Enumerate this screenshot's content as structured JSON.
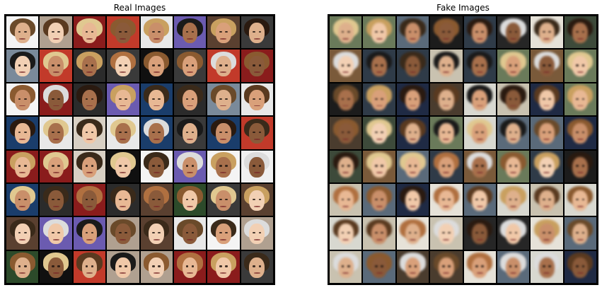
{
  "panels": {
    "real": {
      "title": "Real Images"
    },
    "fake": {
      "title": "Fake Images"
    }
  },
  "grid": {
    "rows": 8,
    "cols": 8
  },
  "colors": {
    "real_backgrounds": [
      "#2b2b2b",
      "#1a3d6b",
      "#f0f0f0",
      "#6a5a4a",
      "#101010",
      "#8a1c1c",
      "#d8d0c4",
      "#3a3a3a",
      "#c23a2a",
      "#b0a090",
      "#7a8a9a",
      "#5a4030",
      "#e8e8e8",
      "#2c4a2a",
      "#6b5bb0",
      "#f4f4f4"
    ],
    "fake_backgrounds": [
      "#3d4a3a",
      "#1f2a44",
      "#e6e2d8",
      "#4a3c2e",
      "#262626",
      "#5a6a7a",
      "#c9c2b0",
      "#2f3b48",
      "#7a5a3a",
      "#d8d8d0",
      "#1c1c1c",
      "#6a7a5a"
    ],
    "skin_tones": [
      "#e8b894",
      "#d9a07a",
      "#f0c8a8",
      "#c98f6a",
      "#a8704c",
      "#f2d0b4",
      "#deb08c",
      "#8a5a3a"
    ],
    "hair_tones": [
      "#2a1a10",
      "#5a3a20",
      "#c9a060",
      "#1a1a1a",
      "#8a5a30",
      "#e0c890",
      "#3a2a1a",
      "#6a4a2a",
      "#b07040",
      "#dcdcdc"
    ]
  }
}
